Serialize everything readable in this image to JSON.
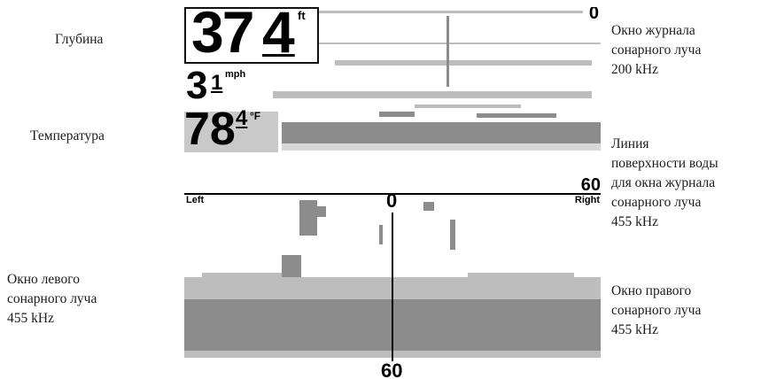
{
  "readouts": {
    "depth": {
      "integer": "37",
      "decimal": "4",
      "unit": "ft"
    },
    "speed": {
      "integer": "3",
      "decimal": "1",
      "unit": "mph"
    },
    "temperature": {
      "integer": "78",
      "decimal": "4",
      "unit": "°F"
    }
  },
  "scale": {
    "top_zero": "0",
    "range_60": "60",
    "left": "Left",
    "right": "Right",
    "center_zero": "0",
    "bottom_60": "60"
  },
  "callouts": {
    "depth": "Глубина",
    "temperature": "Температура",
    "left_window": "Окно левого\nсонарного луча\n455 kHz",
    "log_200": "Окно журнала\nсонарного луча\n200 kHz",
    "surface_line": "Линия\nповерхности воды\nдля окна журнала\nсонарного луча\n455 kHz",
    "right_window": "Окно правого\nсонарного луча\n455 kHz"
  },
  "colors": {
    "sonar_gray": "#8c8c8c",
    "sonar_light": "#bdbdbd",
    "ink": "#000000"
  }
}
